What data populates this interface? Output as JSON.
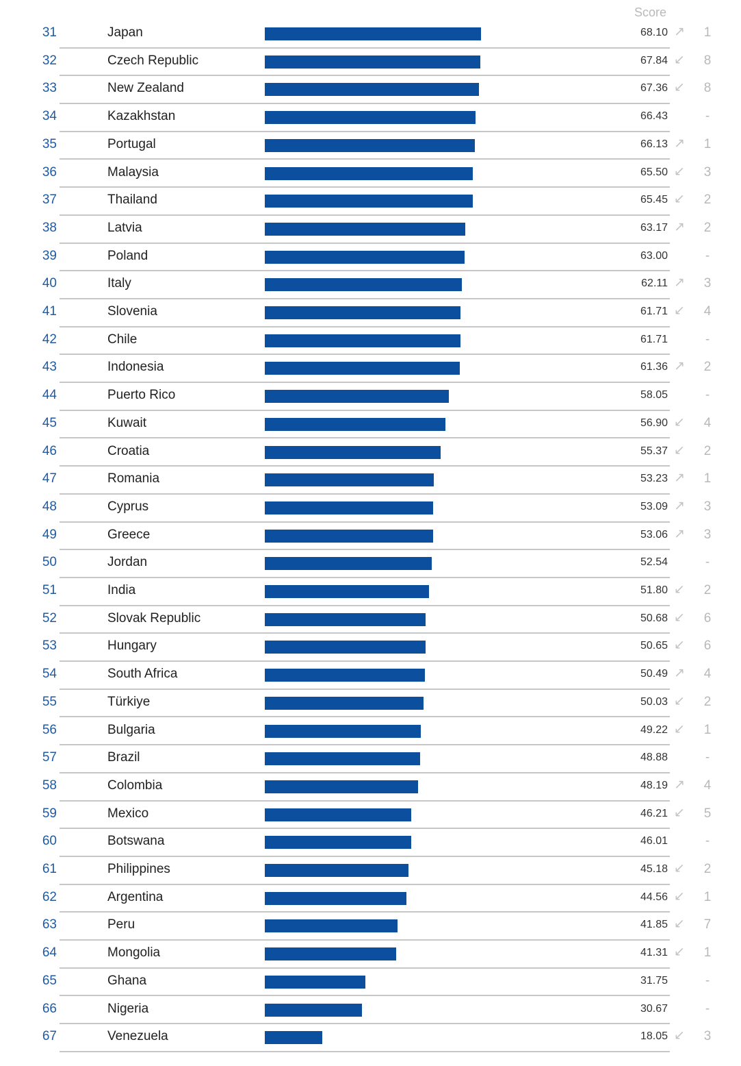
{
  "score_header": "Score",
  "colors": {
    "bar": "#0d4f9f",
    "rank": "#1f5aa2",
    "separator": "#c7c7c7",
    "muted": "#b8b8b8"
  },
  "icons": {
    "up": "arrow-up-right-icon",
    "down": "arrow-down-left-icon"
  },
  "chart_data": {
    "type": "bar",
    "orientation": "horizontal",
    "title": "",
    "value_label": "Score",
    "xlim": [
      0,
      68.1
    ],
    "rows": [
      {
        "rank": "31",
        "country": "Japan",
        "score": 68.1,
        "score_label": "68.10",
        "trend": "up",
        "change": "1"
      },
      {
        "rank": "32",
        "country": "Czech Republic",
        "score": 67.84,
        "score_label": "67.84",
        "trend": "down",
        "change": "8"
      },
      {
        "rank": "33",
        "country": "New Zealand",
        "score": 67.36,
        "score_label": "67.36",
        "trend": "down",
        "change": "8"
      },
      {
        "rank": "34",
        "country": "Kazakhstan",
        "score": 66.43,
        "score_label": "66.43",
        "trend": "none",
        "change": "-"
      },
      {
        "rank": "35",
        "country": "Portugal",
        "score": 66.13,
        "score_label": "66.13",
        "trend": "up",
        "change": "1"
      },
      {
        "rank": "36",
        "country": "Malaysia",
        "score": 65.5,
        "score_label": "65.50",
        "trend": "down",
        "change": "3"
      },
      {
        "rank": "37",
        "country": "Thailand",
        "score": 65.45,
        "score_label": "65.45",
        "trend": "down",
        "change": "2"
      },
      {
        "rank": "38",
        "country": "Latvia",
        "score": 63.17,
        "score_label": "63.17",
        "trend": "up",
        "change": "2"
      },
      {
        "rank": "39",
        "country": "Poland",
        "score": 63.0,
        "score_label": "63.00",
        "trend": "none",
        "change": "-"
      },
      {
        "rank": "40",
        "country": "Italy",
        "score": 62.11,
        "score_label": "62.11",
        "trend": "up",
        "change": "3"
      },
      {
        "rank": "41",
        "country": "Slovenia",
        "score": 61.71,
        "score_label": "61.71",
        "trend": "down",
        "change": "4"
      },
      {
        "rank": "42",
        "country": "Chile",
        "score": 61.71,
        "score_label": "61.71",
        "trend": "none",
        "change": "-"
      },
      {
        "rank": "43",
        "country": "Indonesia",
        "score": 61.36,
        "score_label": "61.36",
        "trend": "up",
        "change": "2"
      },
      {
        "rank": "44",
        "country": "Puerto Rico",
        "score": 58.05,
        "score_label": "58.05",
        "trend": "none",
        "change": "-"
      },
      {
        "rank": "45",
        "country": "Kuwait",
        "score": 56.9,
        "score_label": "56.90",
        "trend": "down",
        "change": "4"
      },
      {
        "rank": "46",
        "country": "Croatia",
        "score": 55.37,
        "score_label": "55.37",
        "trend": "down",
        "change": "2"
      },
      {
        "rank": "47",
        "country": "Romania",
        "score": 53.23,
        "score_label": "53.23",
        "trend": "up",
        "change": "1"
      },
      {
        "rank": "48",
        "country": "Cyprus",
        "score": 53.09,
        "score_label": "53.09",
        "trend": "up",
        "change": "3"
      },
      {
        "rank": "49",
        "country": "Greece",
        "score": 53.06,
        "score_label": "53.06",
        "trend": "up",
        "change": "3"
      },
      {
        "rank": "50",
        "country": "Jordan",
        "score": 52.54,
        "score_label": "52.54",
        "trend": "none",
        "change": "-"
      },
      {
        "rank": "51",
        "country": "India",
        "score": 51.8,
        "score_label": "51.80",
        "trend": "down",
        "change": "2"
      },
      {
        "rank": "52",
        "country": "Slovak Republic",
        "score": 50.68,
        "score_label": "50.68",
        "trend": "down",
        "change": "6"
      },
      {
        "rank": "53",
        "country": "Hungary",
        "score": 50.65,
        "score_label": "50.65",
        "trend": "down",
        "change": "6"
      },
      {
        "rank": "54",
        "country": "South Africa",
        "score": 50.49,
        "score_label": "50.49",
        "trend": "up",
        "change": "4"
      },
      {
        "rank": "55",
        "country": "Türkiye",
        "score": 50.03,
        "score_label": "50.03",
        "trend": "down",
        "change": "2"
      },
      {
        "rank": "56",
        "country": "Bulgaria",
        "score": 49.22,
        "score_label": "49.22",
        "trend": "down",
        "change": "1"
      },
      {
        "rank": "57",
        "country": "Brazil",
        "score": 48.88,
        "score_label": "48.88",
        "trend": "none",
        "change": "-"
      },
      {
        "rank": "58",
        "country": "Colombia",
        "score": 48.19,
        "score_label": "48.19",
        "trend": "up",
        "change": "4"
      },
      {
        "rank": "59",
        "country": "Mexico",
        "score": 46.21,
        "score_label": "46.21",
        "trend": "down",
        "change": "5"
      },
      {
        "rank": "60",
        "country": "Botswana",
        "score": 46.01,
        "score_label": "46.01",
        "trend": "none",
        "change": "-"
      },
      {
        "rank": "61",
        "country": "Philippines",
        "score": 45.18,
        "score_label": "45.18",
        "trend": "down",
        "change": "2"
      },
      {
        "rank": "62",
        "country": "Argentina",
        "score": 44.56,
        "score_label": "44.56",
        "trend": "down",
        "change": "1"
      },
      {
        "rank": "63",
        "country": "Peru",
        "score": 41.85,
        "score_label": "41.85",
        "trend": "down",
        "change": "7"
      },
      {
        "rank": "64",
        "country": "Mongolia",
        "score": 41.31,
        "score_label": "41.31",
        "trend": "down",
        "change": "1"
      },
      {
        "rank": "65",
        "country": "Ghana",
        "score": 31.75,
        "score_label": "31.75",
        "trend": "none",
        "change": "-"
      },
      {
        "rank": "66",
        "country": "Nigeria",
        "score": 30.67,
        "score_label": "30.67",
        "trend": "none",
        "change": "-"
      },
      {
        "rank": "67",
        "country": "Venezuela",
        "score": 18.05,
        "score_label": "18.05",
        "trend": "down",
        "change": "3"
      }
    ]
  }
}
